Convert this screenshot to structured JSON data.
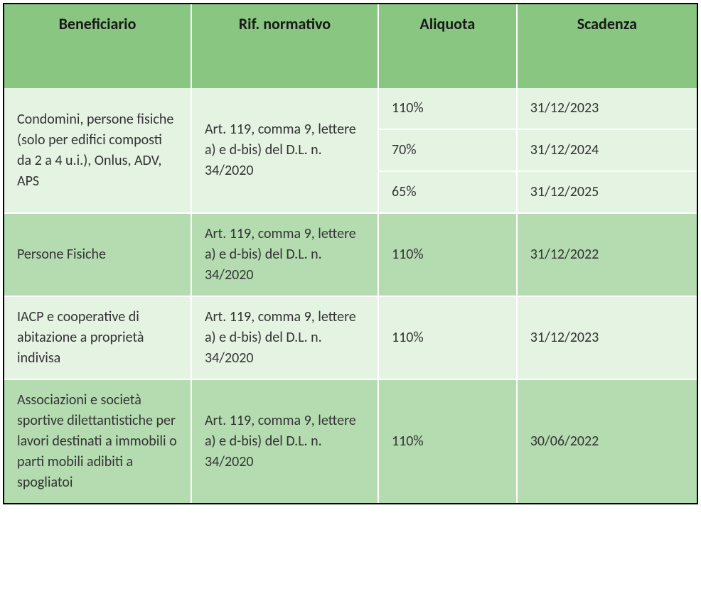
{
  "table": {
    "header_bg": "#88c681",
    "row_light_bg": "#e5f3e3",
    "row_dark_bg": "#b4dcb0",
    "border_color": "#ffffff",
    "outer_border": "#000000",
    "header_fontsize": 22,
    "cell_fontsize": 20,
    "columns": [
      {
        "label": "Beneficiario",
        "width_pct": 27
      },
      {
        "label": "Rif. normativo",
        "width_pct": 27
      },
      {
        "label": "Aliquota",
        "width_pct": 20
      },
      {
        "label": "Scadenza",
        "width_pct": 26
      }
    ],
    "rows": [
      {
        "shade": "light",
        "beneficiario": "Condomini, persone fisiche (solo per edifici composti da 2 a 4 u.i.), Onlus, ADV, APS",
        "rif": "Art. 119, comma 9, lettere a) e d-bis) del D.L. n. 34/2020",
        "sub": [
          {
            "aliquota": "110%",
            "scadenza": "31/12/2023"
          },
          {
            "aliquota": "70%",
            "scadenza": "31/12/2024"
          },
          {
            "aliquota": "65%",
            "scadenza": "31/12/2025"
          }
        ]
      },
      {
        "shade": "dark",
        "beneficiario": "Persone Fisiche",
        "rif": "Art. 119, comma 9, lettere a) e d-bis) del D.L. n. 34/2020",
        "aliquota": "110%",
        "scadenza": "31/12/2022"
      },
      {
        "shade": "light",
        "beneficiario": "IACP e cooperative di abitazione a proprietà indivisa",
        "rif": "Art. 119, comma 9, lettere a) e d-bis) del D.L. n. 34/2020",
        "aliquota": "110%",
        "scadenza": "31/12/2023"
      },
      {
        "shade": "dark",
        "beneficiario": "Associazioni e società sportive dilettantistiche per lavori destinati a immobili o parti mobili adibiti a spogliatoi",
        "rif": "Art. 119, comma 9, lettere a) e d-bis) del D.L. n. 34/2020",
        "aliquota": "110%",
        "scadenza": "30/06/2022"
      }
    ]
  }
}
